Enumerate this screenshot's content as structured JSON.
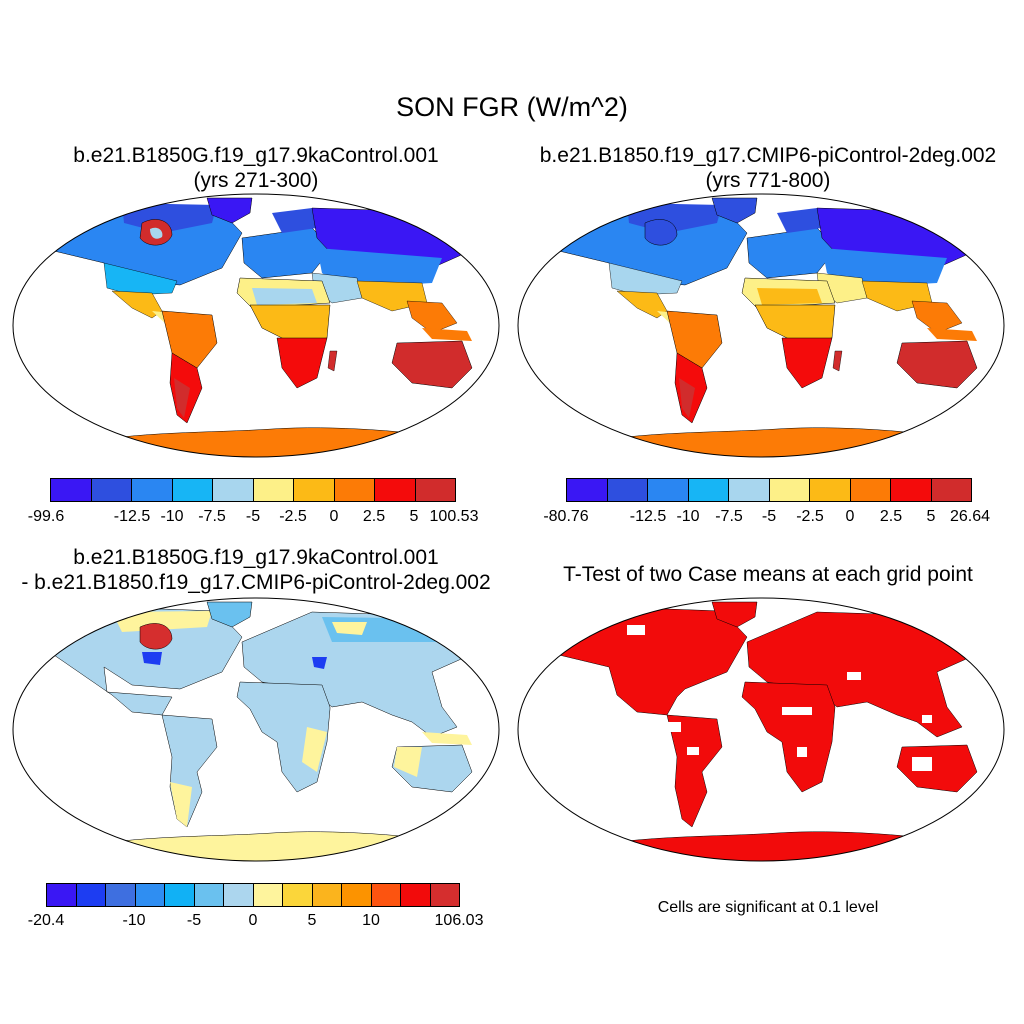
{
  "title": "SON FGR (W/m^2)",
  "panels": [
    {
      "line1": "b.e21.B1850G.f19_g17.9kaControl.001",
      "line2": "(yrs 271-300)",
      "colorbar": {
        "colors": [
          "#3a17f4",
          "#2e4fdf",
          "#2a86f2",
          "#17b5f5",
          "#a8d6ee",
          "#fdf088",
          "#fcba16",
          "#fc7b06",
          "#f40b0b",
          "#d12c2c"
        ],
        "labels": [
          "-99.6",
          "-12.5",
          "-10",
          "-7.5",
          "-5",
          "-2.5",
          "0",
          "2.5",
          "5",
          "100.53"
        ]
      }
    },
    {
      "line1": "b.e21.B1850.f19_g17.CMIP6-piControl-2deg.002",
      "line2": "(yrs 771-800)",
      "colorbar": {
        "colors": [
          "#3a17f4",
          "#2e4fdf",
          "#2a86f2",
          "#17b5f5",
          "#a8d6ee",
          "#fdf088",
          "#fcba16",
          "#fc7b06",
          "#f40b0b",
          "#d12c2c"
        ],
        "labels": [
          "-80.76",
          "-12.5",
          "-10",
          "-7.5",
          "-5",
          "-2.5",
          "0",
          "2.5",
          "5",
          "26.64"
        ]
      }
    },
    {
      "line1": "b.e21.B1850G.f19_g17.9kaControl.001",
      "line2": "- b.e21.B1850.f19_g17.CMIP6-piControl-2deg.002",
      "colorbar": {
        "colors": [
          "#3a17f4",
          "#1d3df2",
          "#3e6fe0",
          "#2f8ef2",
          "#11b1f5",
          "#6ac1ef",
          "#acd6ee",
          "#fef49d",
          "#fbd63a",
          "#fbb41d",
          "#fc9300",
          "#fc5410",
          "#f20b0b",
          "#d52e2e"
        ],
        "labels": [
          "-20.4",
          "-10",
          "-5",
          "0",
          "5",
          "10",
          "106.03"
        ]
      }
    },
    {
      "line1": "T-Test of two Case means at each grid point",
      "note": "Cells are significant at 0.1 level"
    }
  ]
}
